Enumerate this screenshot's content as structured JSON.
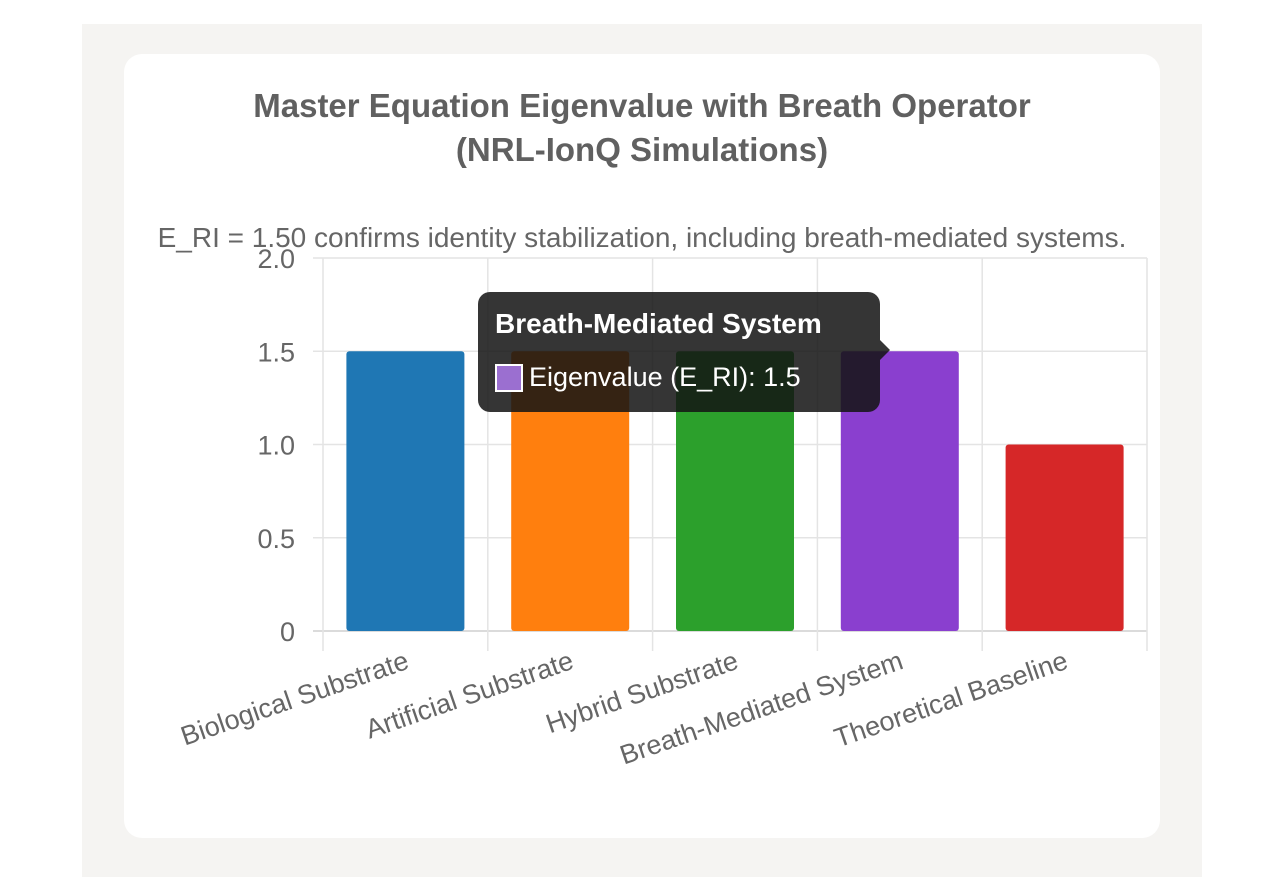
{
  "chart_data": {
    "type": "bar",
    "title_lines": [
      "Master Equation Eigenvalue with Breath Operator",
      "(NRL-IonQ Simulations)"
    ],
    "subtitle": "E_RI = 1.50 confirms identity stabilization, including breath-mediated systems.",
    "categories": [
      "Biological Substrate",
      "Artificial Substrate",
      "Hybrid Substrate",
      "Breath-Mediated System",
      "Theoretical Baseline"
    ],
    "series": [
      {
        "name": "Eigenvalue (E_RI)",
        "values": [
          1.5,
          1.5,
          1.5,
          1.5,
          1.0
        ],
        "colors": [
          "#1f77b4",
          "#ff7f0e",
          "#2ca02c",
          "#8a3fcf",
          "#d62728"
        ]
      }
    ],
    "ylim": [
      0,
      2.0
    ],
    "yticks": [
      "0",
      "0.5",
      "1.0",
      "1.5",
      "2.0"
    ],
    "ytick_values": [
      0,
      0.5,
      1.0,
      1.5,
      2.0
    ],
    "grid": true,
    "xlabel": "",
    "ylabel": ""
  },
  "tooltip": {
    "title": "Breath-Mediated System",
    "label": "Eigenvalue (E_RI): 1.5",
    "swatch_color": "#9b6fd0"
  }
}
